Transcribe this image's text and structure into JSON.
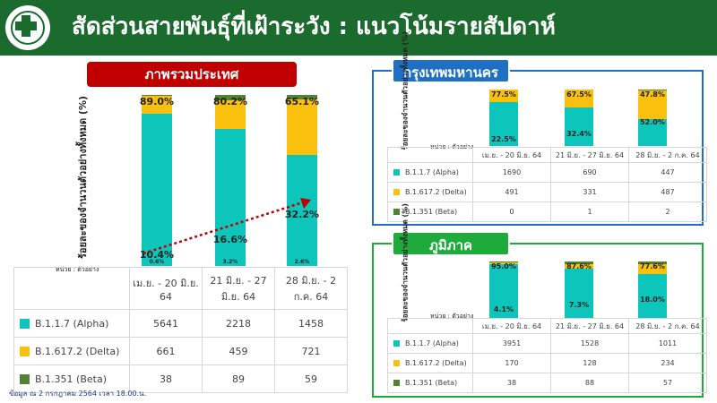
{
  "header": {
    "title": "สัดส่วนสายพันธุ์ที่เฝ้าระวัง : แนวโน้มรายสัปดาห์"
  },
  "colors": {
    "alpha": "#0cc5bb",
    "delta": "#f9c00e",
    "beta": "#538135",
    "header_bg": "#1b6b2e",
    "national_title_bg": "#c00000",
    "bangkok_title_bg": "#1f6fc5",
    "region_title_bg": "#1faa3c",
    "trend_arrow": "#c00000"
  },
  "unit_label": "หน่วย : ตัวอย่าง",
  "footnote": "ข้อมูล ณ 2 กรกฎาคม 2564 เวลา 18.00.น.",
  "chart_data": [
    {
      "type": "bar",
      "stacked": true,
      "panel_title": "ภาพรวมประเทศ",
      "ylabel": "ร้อยละของจำนวนตัวอย่างทั้งหมด (%)",
      "categories": [
        "เม.ย. - 20 มิ.ย. 64",
        "21 มิ.ย. - 27 มิ.ย. 64",
        "28 มิ.ย. - 2 ก.ค. 64"
      ],
      "percent_labels": {
        "alpha": [
          "89.0%",
          "80.2%",
          "65.1%"
        ],
        "delta": [
          "10.4%",
          "16.6%",
          "32.2%"
        ],
        "beta": [
          "0.6%",
          "3.2%",
          "2.6%"
        ]
      },
      "series": [
        {
          "name": "B.1.1.7 (Alpha)",
          "values": [
            5641,
            2218,
            1458
          ],
          "percent": [
            89.0,
            80.2,
            65.1
          ]
        },
        {
          "name": "B.1.617.2 (Delta)",
          "values": [
            661,
            459,
            721
          ],
          "percent": [
            10.4,
            16.6,
            32.2
          ]
        },
        {
          "name": "B.1.351 (Beta)",
          "values": [
            38,
            89,
            59
          ],
          "percent": [
            0.6,
            3.2,
            2.6
          ]
        }
      ],
      "trend_arrow": true
    },
    {
      "type": "bar",
      "stacked": true,
      "panel_title": "กรุงเทพมหานคร",
      "ylabel": "ร้อยละของจำนวนตัวอย่างทั้งหมด (%)",
      "categories": [
        "เม.ย. - 20 มิ.ย. 64",
        "21 มิ.ย. - 27 มิ.ย. 64",
        "28 มิ.ย. - 2 ก.ค. 64"
      ],
      "percent_labels": {
        "alpha": [
          "77.5%",
          "67.5%",
          "47.8%"
        ],
        "delta": [
          "22.5%",
          "32.4%",
          "52.0%"
        ]
      },
      "series": [
        {
          "name": "B.1.1.7 (Alpha)",
          "values": [
            1690,
            690,
            447
          ],
          "percent": [
            77.5,
            67.5,
            47.8
          ]
        },
        {
          "name": "B.1.617.2 (Delta)",
          "values": [
            491,
            331,
            487
          ],
          "percent": [
            22.5,
            32.4,
            52.0
          ]
        },
        {
          "name": "B.1.351 (Beta)",
          "values": [
            0,
            1,
            2
          ],
          "percent": [
            0.0,
            0.1,
            0.2
          ]
        }
      ]
    },
    {
      "type": "bar",
      "stacked": true,
      "panel_title": "ภูมิภาค",
      "ylabel": "ร้อยละของจำนวนตัวอย่างทั้งหมด (%)",
      "categories": [
        "เม.ย. - 20 มิ.ย. 64",
        "21 มิ.ย. - 27 มิ.ย. 64",
        "28 มิ.ย. - 2 ก.ค. 64"
      ],
      "percent_labels": {
        "alpha": [
          "95.0%",
          "87.6%",
          "77.6%"
        ],
        "delta": [
          "4.1%",
          "7.3%",
          "18.0%"
        ]
      },
      "series": [
        {
          "name": "B.1.1.7 (Alpha)",
          "values": [
            3951,
            1528,
            1011
          ],
          "percent": [
            95.0,
            87.6,
            77.6
          ]
        },
        {
          "name": "B.1.617.2 (Delta)",
          "values": [
            170,
            128,
            234
          ],
          "percent": [
            4.1,
            7.3,
            18.0
          ]
        },
        {
          "name": "B.1.351 (Beta)",
          "values": [
            38,
            88,
            57
          ],
          "percent": [
            0.9,
            5.1,
            4.4
          ]
        }
      ]
    }
  ]
}
